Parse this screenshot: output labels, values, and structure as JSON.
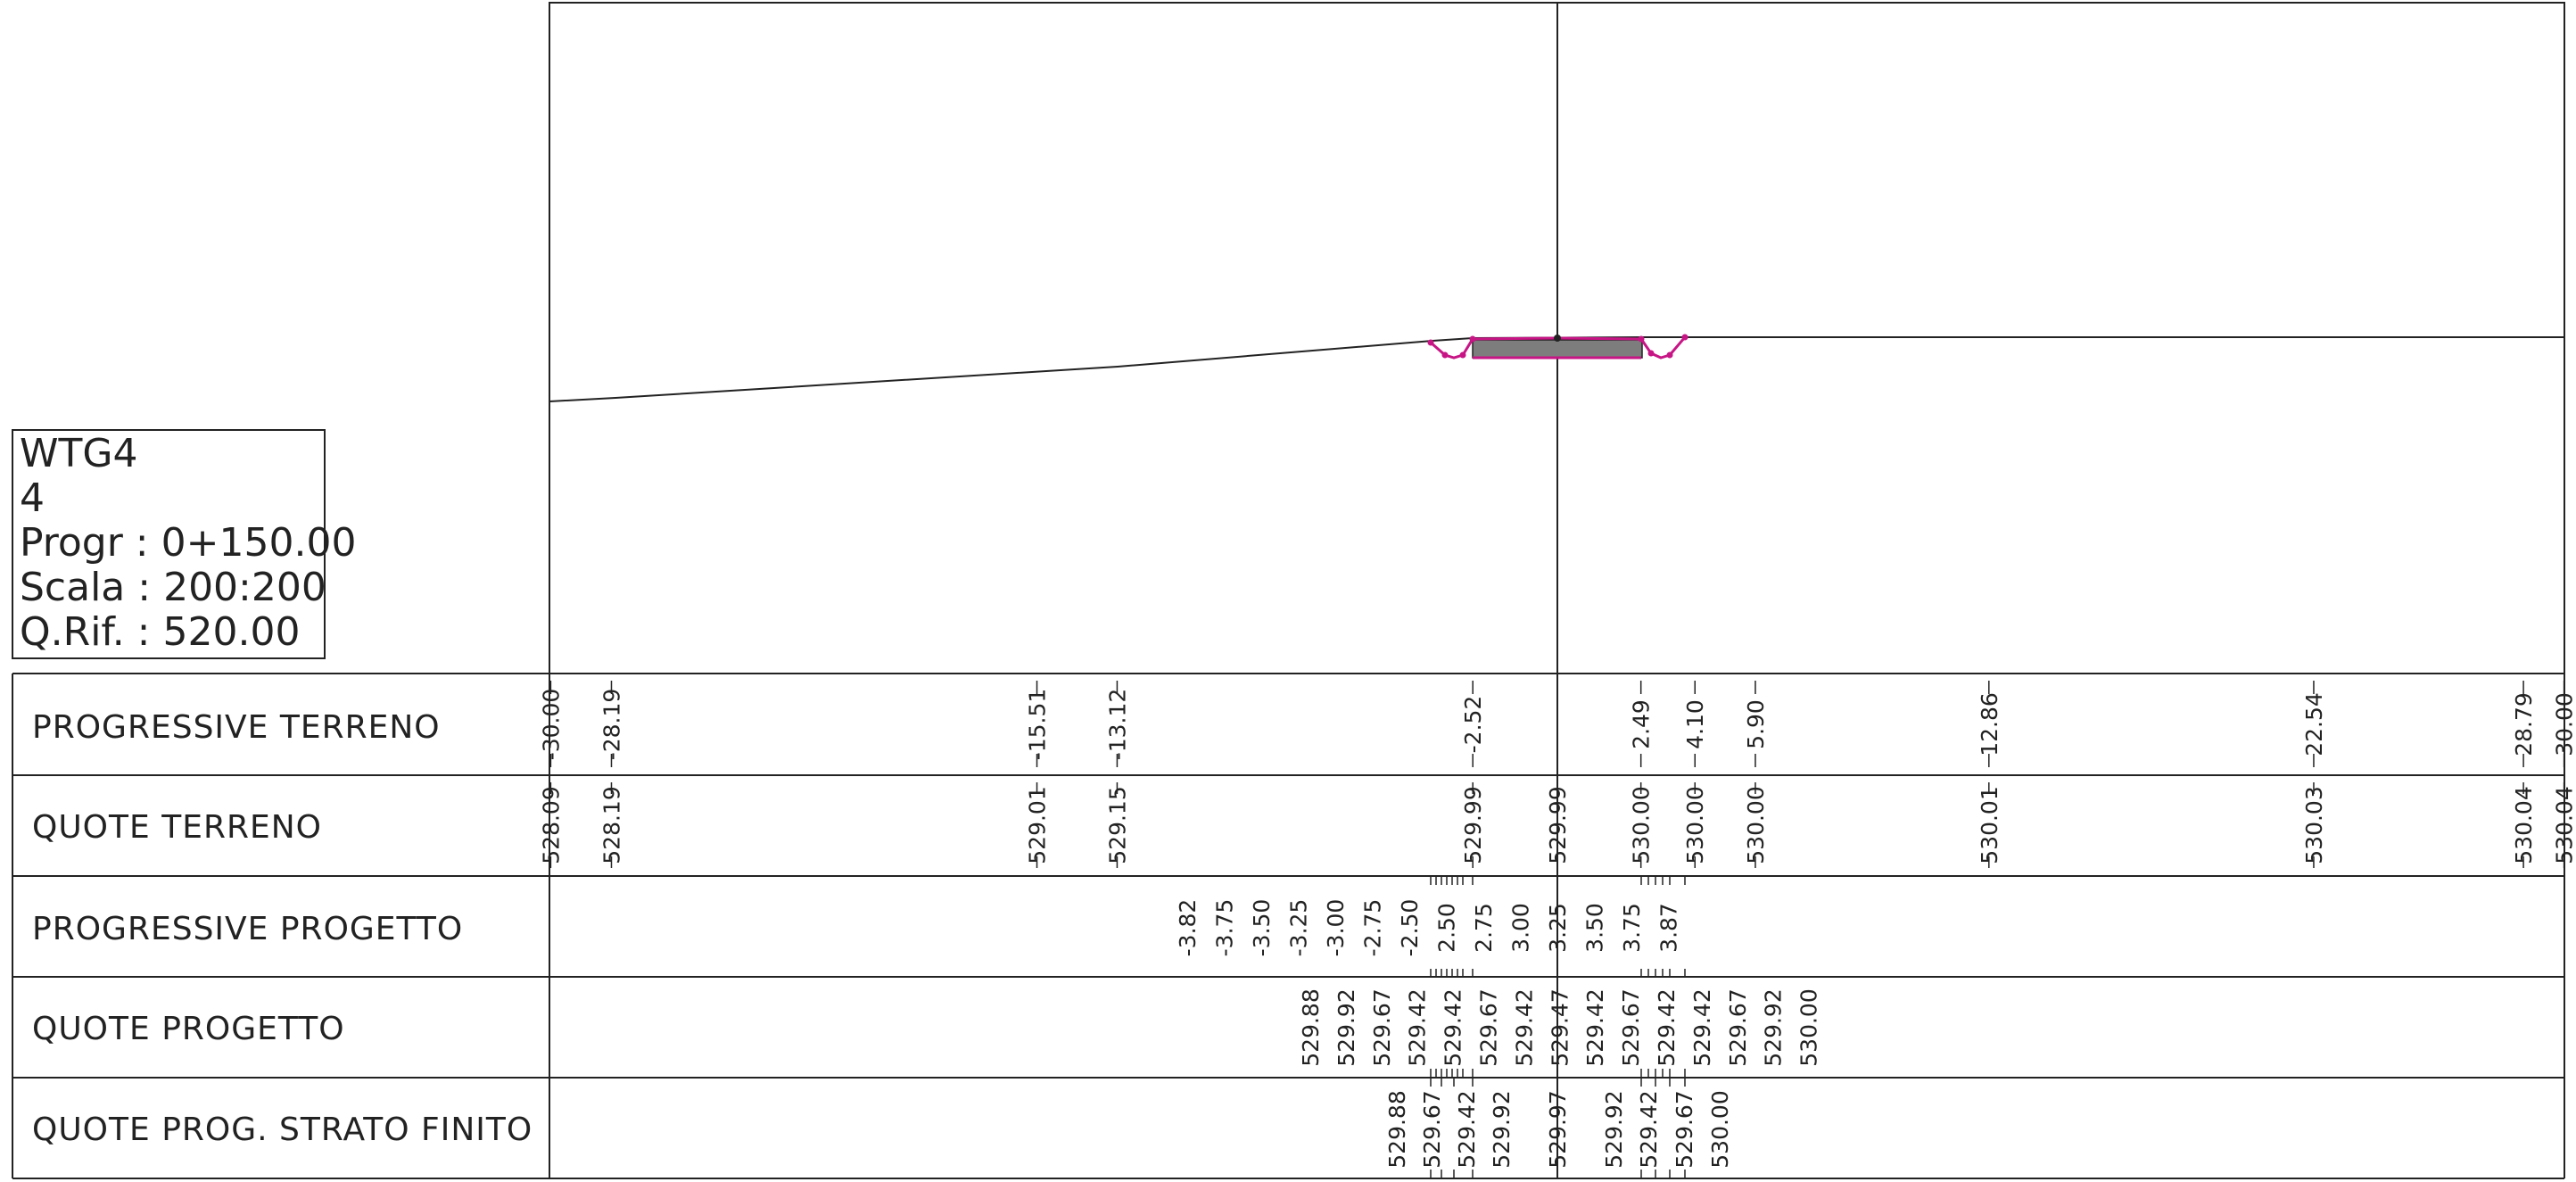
{
  "section": {
    "title": "WTG4",
    "number": "4",
    "progr_line": "Progr : 0+150.00",
    "scala_line": "Scala : 200:200",
    "qrif_line": "Q.Rif. : 520.00"
  },
  "rows": [
    {
      "label": "PROGRESSIVE TERRENO"
    },
    {
      "label": "QUOTE TERRENO"
    },
    {
      "label": "PROGRESSIVE PROGETTO"
    },
    {
      "label": "QUOTE PROGETTO"
    },
    {
      "label": "QUOTE PROG. STRATO FINITO"
    }
  ],
  "terrain": {
    "progressive": [
      {
        "x": -30.0,
        "label": "-30.00"
      },
      {
        "x": -28.19,
        "label": "-28.19"
      },
      {
        "x": -15.51,
        "label": "-15.51"
      },
      {
        "x": -13.12,
        "label": "-13.12"
      },
      {
        "x": -2.52,
        "label": "-2.52"
      },
      {
        "x": 2.49,
        "label": "2.49"
      },
      {
        "x": 4.1,
        "label": "4.10"
      },
      {
        "x": 5.9,
        "label": "5.90"
      },
      {
        "x": 12.86,
        "label": "12.86"
      },
      {
        "x": 22.54,
        "label": "22.54"
      },
      {
        "x": 28.79,
        "label": "28.79"
      },
      {
        "x": 30.0,
        "label": "30.00"
      }
    ],
    "quote": [
      {
        "x": -30.0,
        "label": "528.09"
      },
      {
        "x": -28.19,
        "label": "528.19"
      },
      {
        "x": -15.51,
        "label": "529.01"
      },
      {
        "x": -13.12,
        "label": "529.15"
      },
      {
        "x": -2.52,
        "label": "529.99"
      },
      {
        "x": 0.0,
        "label": "529.99"
      },
      {
        "x": 2.49,
        "label": "530.00"
      },
      {
        "x": 4.1,
        "label": "530.00"
      },
      {
        "x": 5.9,
        "label": "530.00"
      },
      {
        "x": 12.86,
        "label": "530.01"
      },
      {
        "x": 22.54,
        "label": "530.03"
      },
      {
        "x": 28.79,
        "label": "530.04"
      },
      {
        "x": 30.0,
        "label": "530.04"
      }
    ]
  },
  "project": {
    "progressive": [
      "-3.82",
      "-3.75",
      "-3.50",
      "-3.25",
      "-3.00",
      "-2.75",
      "-2.50",
      "2.50",
      "2.75",
      "3.00",
      "3.25",
      "3.50",
      "3.75",
      "3.87"
    ],
    "quote": [
      "529.88",
      "529.92",
      "529.67",
      "529.42",
      "529.42",
      "529.67",
      "529.42",
      "529.47",
      "529.42",
      "529.67",
      "529.42",
      "529.42",
      "529.67",
      "529.92",
      "530.00"
    ],
    "strato_finito": [
      "529.88",
      "529.67",
      "529.42",
      "529.92",
      "529.97",
      "529.92",
      "529.42",
      "529.67",
      "530.00"
    ]
  },
  "colors": {
    "line": "#222222",
    "section_outline": "#c71585",
    "pavement_fill": "#7d7d7d"
  }
}
